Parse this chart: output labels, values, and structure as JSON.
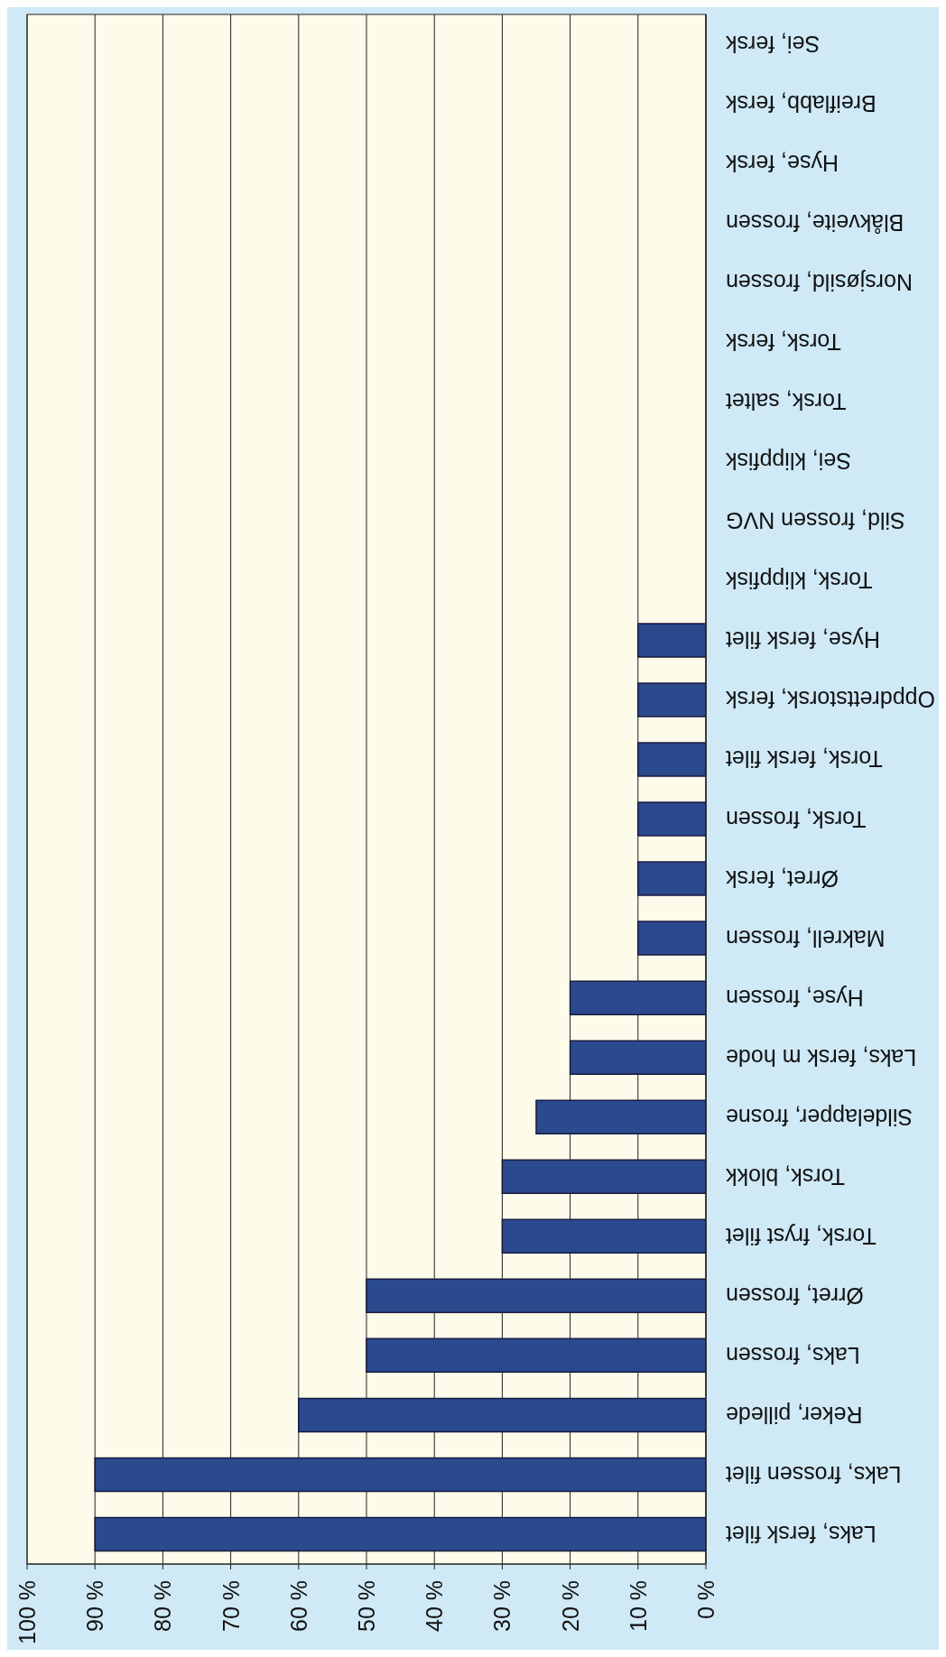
{
  "chart_data": {
    "type": "bar",
    "orientation": "horizontal",
    "categories": [
      "Sei, fersk",
      "Breiflabb, fersk",
      "Hyse, fersk",
      "Blåkveite, frossen",
      "Norsjøsild, frossen",
      "Torsk, fersk",
      "Torsk, saltet",
      "Sei, klippfisk",
      "Sild, frossen NVG",
      "Torsk, klippfisk",
      "Hyse, fersk filet",
      "Oppdrettstorsk, fersk",
      "Torsk, fersk filet",
      "Torsk, frossen",
      "Ørret, fersk",
      "Makrell, frossen",
      "Hyse, frossen",
      "Laks, fersk m hode",
      "Sildelapper, frosne",
      "Torsk, blokk",
      "Torsk, fryst filet",
      "Ørret, frossen",
      "Laks, frossen",
      "Reker, pillede",
      "Laks, frossen filet",
      "Laks, fersk filet"
    ],
    "values": [
      0,
      0,
      0,
      0,
      0,
      0,
      0,
      0,
      0,
      0,
      10,
      10,
      10,
      10,
      10,
      10,
      20,
      20,
      25,
      30,
      30,
      50,
      50,
      60,
      90,
      90
    ],
    "color": "#2b4a8e",
    "xlim": [
      100,
      0
    ],
    "xticks": [
      {
        "value": 100,
        "label": "100 %"
      },
      {
        "value": 90,
        "label": "90 %"
      },
      {
        "value": 80,
        "label": "80 %"
      },
      {
        "value": 70,
        "label": "70 %"
      },
      {
        "value": 60,
        "label": "60 %"
      },
      {
        "value": 50,
        "label": "50 %"
      },
      {
        "value": 40,
        "label": "40 %"
      },
      {
        "value": 30,
        "label": "30 %"
      },
      {
        "value": 20,
        "label": "20 %"
      },
      {
        "value": 10,
        "label": "10 %"
      },
      {
        "value": 0,
        "label": "0 %"
      }
    ],
    "grid": "x"
  }
}
